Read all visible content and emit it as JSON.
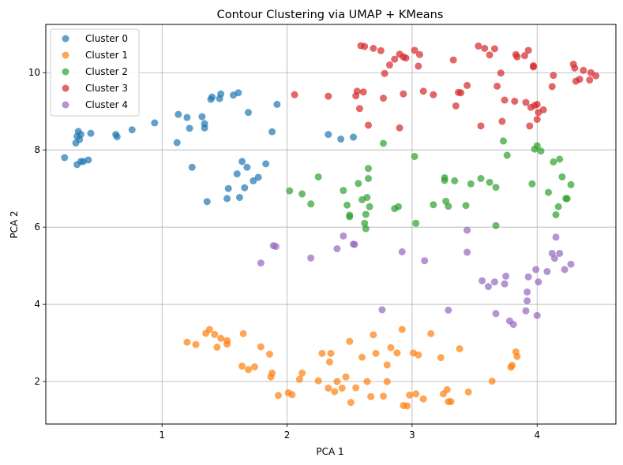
{
  "chart_data": {
    "type": "scatter",
    "title": "Contour Clustering via UMAP + KMeans",
    "xlabel": "PCA 1",
    "ylabel": "PCA 2",
    "xlim": [
      0.07,
      4.63
    ],
    "ylim": [
      0.9,
      11.25
    ],
    "xticks": [
      1,
      2,
      3,
      4
    ],
    "yticks": [
      2,
      4,
      6,
      8,
      10
    ],
    "grid": true,
    "legend_position": "top-left",
    "series": [
      {
        "name": "Cluster 0",
        "color": "#1f77b4",
        "points": [
          [
            0.22,
            7.8
          ],
          [
            0.31,
            8.18
          ],
          [
            0.32,
            8.35
          ],
          [
            0.33,
            8.48
          ],
          [
            0.34,
            8.27
          ],
          [
            0.35,
            8.4
          ],
          [
            0.32,
            7.62
          ],
          [
            0.35,
            7.7
          ],
          [
            0.37,
            7.7
          ],
          [
            0.41,
            7.74
          ],
          [
            0.43,
            8.43
          ],
          [
            0.63,
            8.4
          ],
          [
            0.64,
            8.34
          ],
          [
            0.76,
            8.52
          ],
          [
            0.94,
            8.7
          ],
          [
            1.12,
            8.19
          ],
          [
            1.13,
            8.92
          ],
          [
            1.2,
            8.84
          ],
          [
            1.22,
            8.56
          ],
          [
            1.24,
            7.55
          ],
          [
            1.32,
            8.86
          ],
          [
            1.34,
            8.57
          ],
          [
            1.34,
            8.68
          ],
          [
            1.36,
            6.66
          ],
          [
            1.39,
            9.31
          ],
          [
            1.4,
            9.37
          ],
          [
            1.46,
            9.33
          ],
          [
            1.47,
            9.45
          ],
          [
            1.52,
            6.74
          ],
          [
            1.53,
            7.0
          ],
          [
            1.57,
            9.42
          ],
          [
            1.6,
            7.38
          ],
          [
            1.61,
            9.48
          ],
          [
            1.62,
            6.77
          ],
          [
            1.64,
            7.7
          ],
          [
            1.66,
            7.02
          ],
          [
            1.68,
            7.55
          ],
          [
            1.69,
            8.97
          ],
          [
            1.73,
            7.2
          ],
          [
            1.77,
            7.29
          ],
          [
            1.83,
            7.64
          ],
          [
            1.88,
            8.47
          ],
          [
            1.92,
            9.18
          ],
          [
            2.33,
            8.4
          ],
          [
            2.43,
            8.28
          ],
          [
            2.53,
            8.33
          ]
        ]
      },
      {
        "name": "Cluster 1",
        "color": "#ff7f0e",
        "points": [
          [
            1.2,
            3.02
          ],
          [
            1.27,
            2.96
          ],
          [
            1.35,
            3.25
          ],
          [
            1.38,
            3.35
          ],
          [
            1.42,
            3.22
          ],
          [
            1.44,
            2.89
          ],
          [
            1.47,
            3.12
          ],
          [
            1.52,
            3.06
          ],
          [
            1.52,
            2.97
          ],
          [
            1.64,
            2.4
          ],
          [
            1.65,
            3.24
          ],
          [
            1.69,
            2.31
          ],
          [
            1.74,
            2.38
          ],
          [
            1.79,
            2.9
          ],
          [
            1.86,
            2.71
          ],
          [
            1.87,
            2.12
          ],
          [
            1.88,
            2.22
          ],
          [
            1.93,
            1.64
          ],
          [
            2.01,
            1.71
          ],
          [
            2.04,
            1.66
          ],
          [
            2.1,
            2.06
          ],
          [
            2.12,
            2.22
          ],
          [
            2.25,
            2.02
          ],
          [
            2.28,
            2.73
          ],
          [
            2.33,
            1.83
          ],
          [
            2.34,
            2.51
          ],
          [
            2.35,
            2.73
          ],
          [
            2.38,
            1.74
          ],
          [
            2.4,
            2.0
          ],
          [
            2.44,
            1.83
          ],
          [
            2.47,
            2.12
          ],
          [
            2.5,
            3.04
          ],
          [
            2.51,
            1.46
          ],
          [
            2.55,
            1.84
          ],
          [
            2.6,
            2.63
          ],
          [
            2.64,
            2.0
          ],
          [
            2.67,
            1.61
          ],
          [
            2.69,
            3.21
          ],
          [
            2.71,
            2.73
          ],
          [
            2.77,
            1.62
          ],
          [
            2.8,
            2.43
          ],
          [
            2.8,
            2.0
          ],
          [
            2.83,
            2.88
          ],
          [
            2.88,
            2.74
          ],
          [
            2.92,
            3.35
          ],
          [
            2.93,
            1.38
          ],
          [
            2.96,
            1.37
          ],
          [
            2.98,
            1.65
          ],
          [
            3.01,
            2.74
          ],
          [
            3.03,
            1.68
          ],
          [
            3.05,
            2.69
          ],
          [
            3.09,
            1.55
          ],
          [
            3.15,
            3.24
          ],
          [
            3.23,
            2.62
          ],
          [
            3.25,
            1.68
          ],
          [
            3.28,
            1.79
          ],
          [
            3.29,
            1.48
          ],
          [
            3.31,
            1.48
          ],
          [
            3.38,
            2.85
          ],
          [
            3.45,
            1.73
          ],
          [
            3.64,
            2.01
          ],
          [
            3.79,
            2.37
          ],
          [
            3.8,
            2.42
          ],
          [
            3.83,
            2.77
          ],
          [
            3.84,
            2.65
          ]
        ]
      },
      {
        "name": "Cluster 2",
        "color": "#2ca02c",
        "points": [
          [
            2.02,
            6.94
          ],
          [
            2.12,
            6.86
          ],
          [
            2.19,
            6.6
          ],
          [
            2.25,
            7.3
          ],
          [
            2.45,
            6.95
          ],
          [
            2.48,
            6.57
          ],
          [
            2.5,
            6.27
          ],
          [
            2.5,
            6.31
          ],
          [
            2.57,
            7.13
          ],
          [
            2.6,
            6.71
          ],
          [
            2.62,
            6.1
          ],
          [
            2.63,
            6.33
          ],
          [
            2.63,
            5.96
          ],
          [
            2.64,
            6.77
          ],
          [
            2.65,
            7.26
          ],
          [
            2.65,
            7.52
          ],
          [
            2.66,
            6.53
          ],
          [
            2.77,
            8.17
          ],
          [
            2.86,
            6.48
          ],
          [
            2.89,
            6.53
          ],
          [
            3.02,
            7.83
          ],
          [
            3.03,
            6.1
          ],
          [
            3.17,
            6.58
          ],
          [
            3.26,
            7.28
          ],
          [
            3.27,
            6.67
          ],
          [
            3.26,
            7.21
          ],
          [
            3.29,
            6.54
          ],
          [
            3.34,
            7.2
          ],
          [
            3.43,
            6.56
          ],
          [
            3.47,
            7.12
          ],
          [
            3.55,
            7.26
          ],
          [
            3.62,
            7.16
          ],
          [
            3.67,
            7.03
          ],
          [
            3.67,
            6.04
          ],
          [
            3.73,
            8.23
          ],
          [
            3.76,
            7.86
          ],
          [
            3.96,
            7.12
          ],
          [
            3.98,
            8.02
          ],
          [
            4.0,
            8.11
          ],
          [
            4.03,
            7.97
          ],
          [
            4.09,
            6.9
          ],
          [
            4.13,
            7.69
          ],
          [
            4.15,
            6.32
          ],
          [
            4.17,
            6.53
          ],
          [
            4.18,
            7.76
          ],
          [
            4.2,
            7.3
          ],
          [
            4.23,
            6.74
          ],
          [
            4.24,
            6.74
          ],
          [
            4.27,
            7.1
          ]
        ]
      },
      {
        "name": "Cluster 3",
        "color": "#d62728",
        "points": [
          [
            2.06,
            9.43
          ],
          [
            2.33,
            9.39
          ],
          [
            2.55,
            9.4
          ],
          [
            2.56,
            9.52
          ],
          [
            2.58,
            9.07
          ],
          [
            2.59,
            10.7
          ],
          [
            2.62,
            10.68
          ],
          [
            2.61,
            9.5
          ],
          [
            2.65,
            8.64
          ],
          [
            2.69,
            10.63
          ],
          [
            2.75,
            10.57
          ],
          [
            2.77,
            9.34
          ],
          [
            2.78,
            9.98
          ],
          [
            2.82,
            10.2
          ],
          [
            2.86,
            10.35
          ],
          [
            2.9,
            10.48
          ],
          [
            2.93,
            10.41
          ],
          [
            2.9,
            8.57
          ],
          [
            2.93,
            9.45
          ],
          [
            2.95,
            10.38
          ],
          [
            3.02,
            10.58
          ],
          [
            3.05,
            10.17
          ],
          [
            3.06,
            10.47
          ],
          [
            3.09,
            9.52
          ],
          [
            3.17,
            9.43
          ],
          [
            3.33,
            10.33
          ],
          [
            3.35,
            9.14
          ],
          [
            3.37,
            9.49
          ],
          [
            3.39,
            9.48
          ],
          [
            3.44,
            9.67
          ],
          [
            3.53,
            10.69
          ],
          [
            3.55,
            8.62
          ],
          [
            3.58,
            10.63
          ],
          [
            3.62,
            10.46
          ],
          [
            3.66,
            10.62
          ],
          [
            3.68,
            9.65
          ],
          [
            3.71,
            9.99
          ],
          [
            3.72,
            8.74
          ],
          [
            3.74,
            9.29
          ],
          [
            3.82,
            9.26
          ],
          [
            3.83,
            10.47
          ],
          [
            3.84,
            10.41
          ],
          [
            3.9,
            10.44
          ],
          [
            3.91,
            9.23
          ],
          [
            3.93,
            10.58
          ],
          [
            3.94,
            8.62
          ],
          [
            3.95,
            9.1
          ],
          [
            3.97,
            10.18
          ],
          [
            3.97,
            10.15
          ],
          [
            3.98,
            9.15
          ],
          [
            4.0,
            8.79
          ],
          [
            4.01,
            8.97
          ],
          [
            4.0,
            9.18
          ],
          [
            4.05,
            9.04
          ],
          [
            4.12,
            9.64
          ],
          [
            4.13,
            9.93
          ],
          [
            4.29,
            10.22
          ],
          [
            4.3,
            10.12
          ],
          [
            4.31,
            9.78
          ],
          [
            4.34,
            9.83
          ],
          [
            4.37,
            10.06
          ],
          [
            4.42,
            9.81
          ],
          [
            4.43,
            10.0
          ],
          [
            4.47,
            9.92
          ]
        ]
      },
      {
        "name": "Cluster 4",
        "color": "#9467bd",
        "points": [
          [
            1.79,
            5.07
          ],
          [
            1.89,
            5.52
          ],
          [
            1.91,
            5.5
          ],
          [
            2.19,
            5.2
          ],
          [
            2.4,
            5.44
          ],
          [
            2.45,
            5.77
          ],
          [
            2.53,
            5.56
          ],
          [
            2.54,
            5.55
          ],
          [
            2.76,
            3.86
          ],
          [
            2.92,
            5.36
          ],
          [
            3.1,
            5.13
          ],
          [
            3.29,
            3.85
          ],
          [
            3.44,
            5.92
          ],
          [
            3.44,
            5.35
          ],
          [
            3.56,
            4.61
          ],
          [
            3.61,
            4.46
          ],
          [
            3.66,
            4.58
          ],
          [
            3.67,
            3.76
          ],
          [
            3.74,
            4.53
          ],
          [
            3.75,
            4.73
          ],
          [
            3.78,
            3.57
          ],
          [
            3.81,
            3.48
          ],
          [
            3.91,
            3.83
          ],
          [
            3.92,
            4.09
          ],
          [
            3.92,
            4.32
          ],
          [
            3.93,
            4.71
          ],
          [
            3.99,
            4.9
          ],
          [
            4.0,
            3.71
          ],
          [
            4.01,
            4.58
          ],
          [
            4.08,
            4.85
          ],
          [
            4.12,
            5.32
          ],
          [
            4.14,
            5.19
          ],
          [
            4.15,
            5.74
          ],
          [
            4.18,
            5.32
          ],
          [
            4.22,
            4.9
          ],
          [
            4.27,
            5.04
          ]
        ]
      }
    ]
  }
}
